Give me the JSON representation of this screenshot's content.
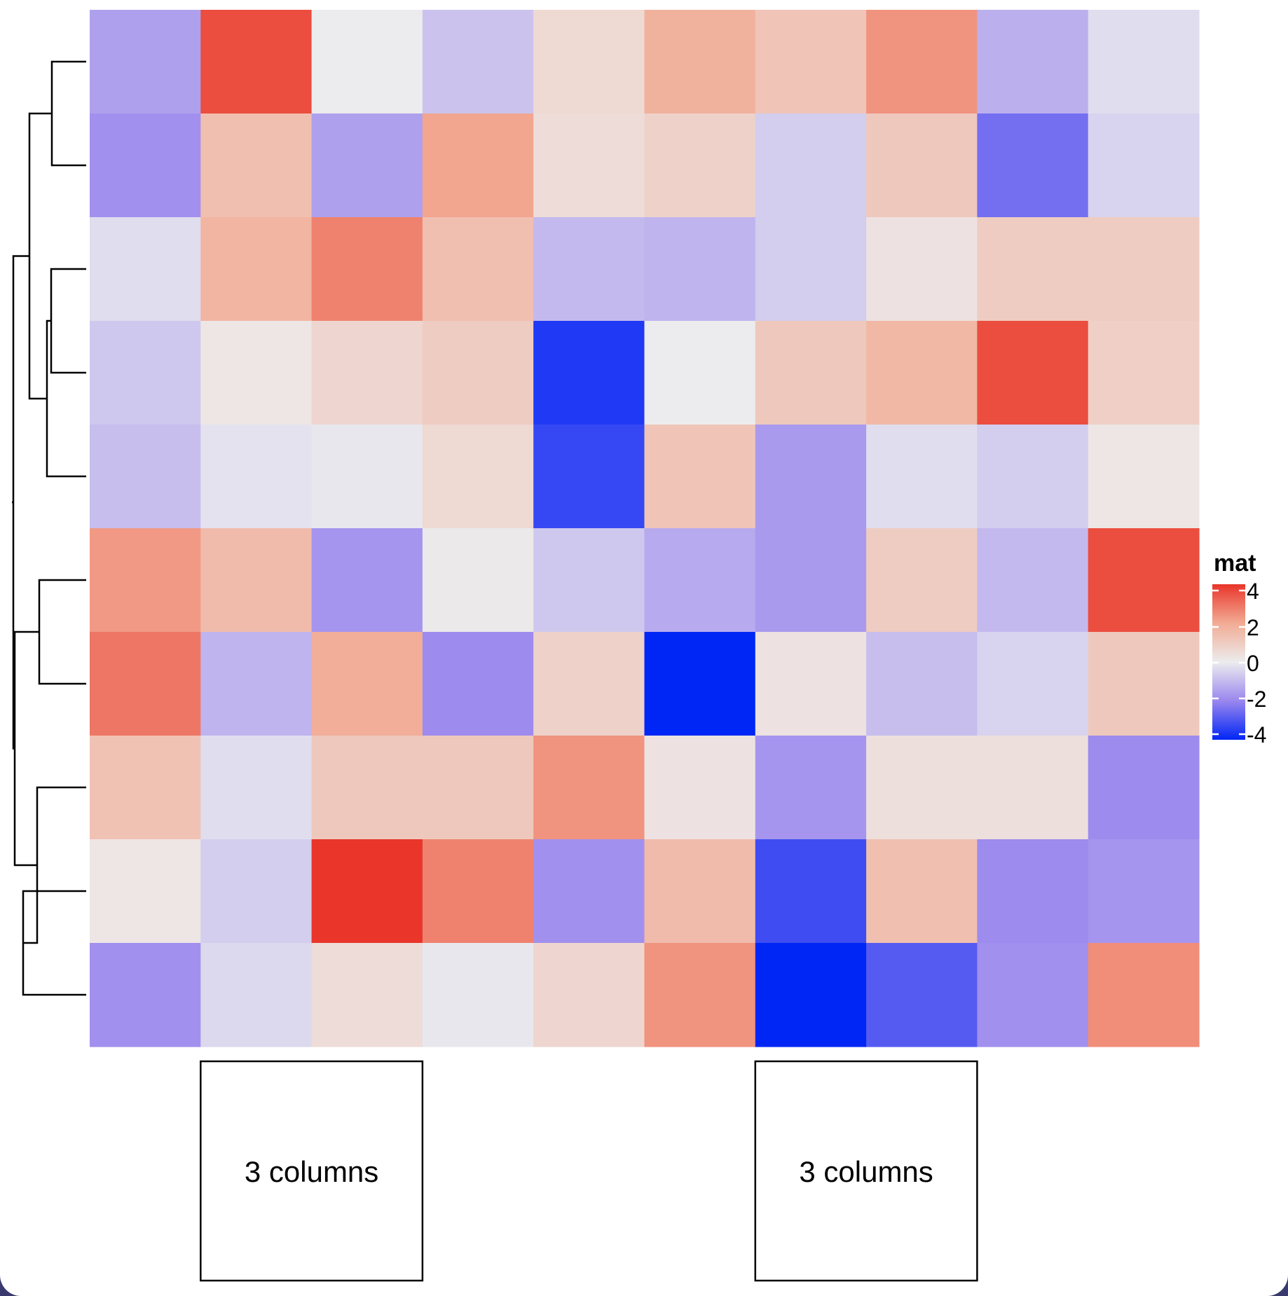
{
  "chart_data": {
    "type": "heatmap",
    "rows": 10,
    "cols": 10,
    "values": [
      [
        -1.5,
        3.6,
        0.0,
        -0.8,
        0.6,
        1.8,
        1.2,
        2.4,
        -1.2,
        -0.3
      ],
      [
        -1.8,
        1.4,
        -1.5,
        2.1,
        0.5,
        0.8,
        -0.6,
        1.1,
        -2.5,
        -0.5
      ],
      [
        -0.3,
        1.7,
        2.7,
        1.4,
        -1.0,
        -1.1,
        -0.6,
        0.3,
        1.0,
        1.0
      ],
      [
        -0.7,
        0.2,
        0.7,
        1.0,
        -3.6,
        0.0,
        1.1,
        1.6,
        3.6,
        0.9
      ],
      [
        -0.9,
        -0.2,
        -0.1,
        0.6,
        -3.3,
        1.2,
        -1.6,
        -0.3,
        -0.6,
        0.2
      ],
      [
        2.3,
        1.5,
        -1.7,
        0.1,
        -0.7,
        -1.3,
        -1.6,
        1.0,
        -1.0,
        3.6
      ],
      [
        2.9,
        -1.1,
        1.9,
        -1.9,
        0.8,
        -4.4,
        0.3,
        -0.9,
        -0.5,
        1.1
      ],
      [
        1.3,
        -0.3,
        1.1,
        1.1,
        2.4,
        0.3,
        -1.7,
        0.4,
        0.4,
        -1.9
      ],
      [
        0.2,
        -0.6,
        4.0,
        2.7,
        -1.8,
        1.5,
        -3.2,
        1.4,
        -1.9,
        -1.7
      ],
      [
        -1.8,
        -0.4,
        0.5,
        -0.1,
        0.7,
        2.4,
        -4.6,
        -2.9,
        -1.8,
        2.5
      ]
    ],
    "color_scale": {
      "breaks": [
        -4,
        -2,
        0,
        2,
        4
      ],
      "colors": [
        "#0026f5",
        "#9a86ee",
        "#ececee",
        "#f2ab94",
        "#e9352a"
      ]
    },
    "legend": {
      "title": "mat",
      "ticks": [
        "4",
        "2",
        "0",
        "-2",
        "-4"
      ],
      "placement": "right"
    },
    "row_dendrogram": "left",
    "column_annotation": {
      "boxes": [
        {
          "label": "3 columns",
          "cols": [
            1,
            3
          ]
        },
        {
          "label": "3 columns",
          "cols": [
            6,
            8
          ]
        }
      ]
    }
  }
}
